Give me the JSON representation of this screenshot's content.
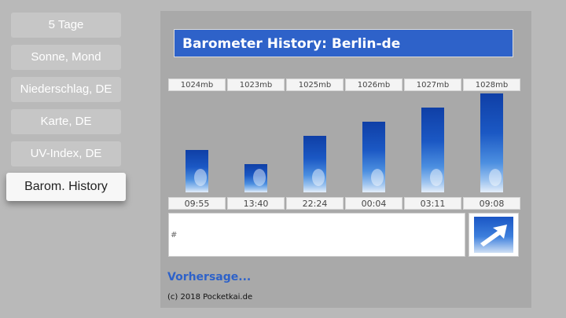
{
  "menu": {
    "items": [
      {
        "label": "5 Tage"
      },
      {
        "label": "Sonne, Mond"
      },
      {
        "label": "Niederschlag, DE"
      },
      {
        "label": "Karte, DE"
      },
      {
        "label": "UV-Index, DE"
      },
      {
        "label": "Barom. History",
        "active": true
      }
    ]
  },
  "panel": {
    "title": "Barometer History: Berlin-de",
    "notes_text": "#",
    "forecast_link": "Vorhersage...",
    "copyright": "(c) 2018 Pocketkai.de",
    "forecast_icon": "arrow-icon"
  },
  "chart_data": {
    "type": "bar",
    "categories": [
      "09:55",
      "13:40",
      "22:24",
      "00:04",
      "03:11",
      "09:08"
    ],
    "values": [
      1024,
      1023,
      1025,
      1026,
      1027,
      1028
    ],
    "value_labels": [
      "1024mb",
      "1023mb",
      "1025mb",
      "1026mb",
      "1027mb",
      "1028mb"
    ],
    "ylim": [
      1021,
      1028
    ],
    "title": "",
    "xlabel": "",
    "ylabel": ""
  },
  "colors": {
    "accent": "#2e62c9",
    "background": "#b9b9b9",
    "panel": "#a9a9a9"
  }
}
